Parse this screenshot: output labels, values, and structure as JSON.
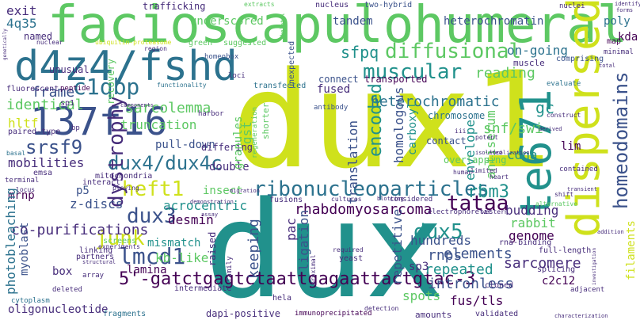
{
  "palette": {
    "lime": "#cfe11c",
    "green": "#5dc863",
    "teal": "#21918c",
    "blue": "#2c728e",
    "indigo": "#3b528b",
    "purple": "#472d7b",
    "dark": "#440154"
  },
  "words": {
    "dux1": "dux1",
    "dux": "dux",
    "facioscapulohumeral": "facioscapulohumeral",
    "d4z4_fshd": "d4z4/fshd",
    "w137f16": "137f16",
    "te671": "te671",
    "dispersed": "dispersed",
    "diffusional": "diffusional",
    "muscular": "muscular",
    "ribonucleoparticles": "ribonucleoparticles",
    "gatc": "5'-gatctgagtctaattgagaattactgtac-3",
    "dux4_dux4c": "dux4/dux4c",
    "heft1": "heft1",
    "dux3": "dux3",
    "lmcd1": "lmcd1",
    "dux5": "dux5",
    "tataa": "tataa",
    "rbm3": "rbm3",
    "c1qbp": "c1qbp",
    "srsf9": "srsf9",
    "dystrophy": "dystrophy",
    "junk": "junk",
    "homeodomains": "homeodomains",
    "encoded": "encoded",
    "heterochromatic": "heterochromatic",
    "heterochromatin": "heterochromatin",
    "underscored": "underscored",
    "tandem": "tandem",
    "sfpq": "sfpq",
    "on_going": "on-going",
    "reading": "reading",
    "rhabdomyosarcoma": "rhabdomyosarcoma",
    "co_purifications": "co-purifications",
    "elements": "elements",
    "repeated": "repeated",
    "intronless": "intronless",
    "sarcomere": "sarcomere",
    "genome": "genome",
    "hundreds": "hundreds",
    "rnps": "rnps",
    "rabbit": "rabbit",
    "budding": "budding",
    "envelope": "envelope",
    "antiserum": "antiserum",
    "snf_swi": "snf/swi",
    "cdna": "cdna",
    "gc": "gc",
    "lim": "lim",
    "sarcolemma": "sarcolemma",
    "truncation": "truncation",
    "frame": "frame",
    "identical": "identical",
    "hltf": "hltf",
    "mobilities": "mobilities",
    "mrnp": "mrnp",
    "p5": "p5",
    "z_discs": "z-discs",
    "acrocentric": "acrocentric",
    "desmin": "desmin",
    "mismatch": "mismatch",
    "kb_like": "kb-like",
    "lamina": "lamina",
    "double": "double",
    "insect": "insect",
    "pull_down": "pull-down",
    "differing": "differing",
    "fused": "fused",
    "connect": "connect",
    "transported": "transported",
    "homologous": "homologous",
    "carboxyl": "carboxyl",
    "translation": "translation",
    "granules": "granules",
    "keeping": "keeping",
    "pac": "pac",
    "ligation": "ligation",
    "repetitive": "repetitive",
    "photobleaching": "photobleaching",
    "myoblast": "myoblast",
    "box": "box",
    "oligonucleotide": "oligonucleotide",
    "spots": "spots",
    "fus_tls": "fus/tls",
    "sp3": "sp3",
    "c2c12": "c2c12",
    "filaments": "filaments",
    "exit": "exit",
    "q35": "4q35",
    "named": "named",
    "unusual": "unusual",
    "poly": "poly",
    "kda": "kda",
    "gst": "gst",
    "green": "green",
    "suggested": "suggested",
    "raised": "raised",
    "chromosome": "chromosome",
    "contact": "contact",
    "overlapping": "overlapping",
    "trafficking": "trafficking",
    "nucleus": "nucleus",
    "two_hybrid": "two-hybrid",
    "extracts": "extracts",
    "nuclei": "nuclei",
    "identify": "identify",
    "forms": "forms",
    "map": "map",
    "minimal": "minimal",
    "muscle": "muscle",
    "comprising": "comprising",
    "evaluate": "evaluate",
    "peptide": "peptide",
    "fluorescent": "fluorescent",
    "sp1": "sp1",
    "paired_type": "paired-type",
    "bp": "bp",
    "recovery": "recovery",
    "functionality": "functionality",
    "components": "components",
    "harbor": "harbor",
    "transfected": "transfected",
    "loci": "loci",
    "homeobox": "homeobox",
    "region": "region",
    "nuclear": "nuclear",
    "genetically": "genetically",
    "ubiquitin_proteasome": "ubiquitin-proteasome",
    "skeletal": "skeletal",
    "unexpected": "unexpected",
    "antibody": "antibody",
    "shorter": "shorter",
    "regeneration": "regeneration",
    "mitochondria": "mitochondria",
    "interact": "interact",
    "emsa": "emsa",
    "terminal": "terminal",
    "locus": "locus",
    "playing": "playing",
    "basal": "basal",
    "migration": "migration",
    "screens": "screens",
    "experiments": "experiments",
    "linking": "linking",
    "partners": "partners",
    "structural": "structural",
    "array": "array",
    "cytoplasm": "cytoplasm",
    "deleted": "deleted",
    "intermediate": "intermediate",
    "hela": "hela",
    "family": "family",
    "fragments": "fragments",
    "dapi_positive": "dapi-positive",
    "immunoprecipitated": "immunoprecipitated",
    "amounts": "amounts",
    "validated": "validated",
    "characterization": "characterization",
    "fusions": "fusions",
    "cultures": "cultures",
    "considered": "considered",
    "electrophoretic": "electrophoretic",
    "western": "western",
    "shift": "shift",
    "contained": "contained",
    "addition": "addition",
    "rna_binding": "rna-binding",
    "alternative": "alternative",
    "full_length": "full-length",
    "splicing": "splicing",
    "adjacent": "adjacent",
    "cloned": "cloned",
    "required": "required",
    "yeast": "yeast",
    "proximal": "proximal",
    "detection": "detection",
    "blotting": "blotting",
    "human": "human",
    "limited": "limited",
    "heart": "heart",
    "localization": "localization",
    "iii": "iii",
    "potent": "potent",
    "isolated": "isolated",
    "derived": "derived",
    "construct": "construct",
    "total": "total",
    "demonstration": "demonstration",
    "assay": "assay",
    "transient": "transient",
    "investigation": "investigation"
  }
}
